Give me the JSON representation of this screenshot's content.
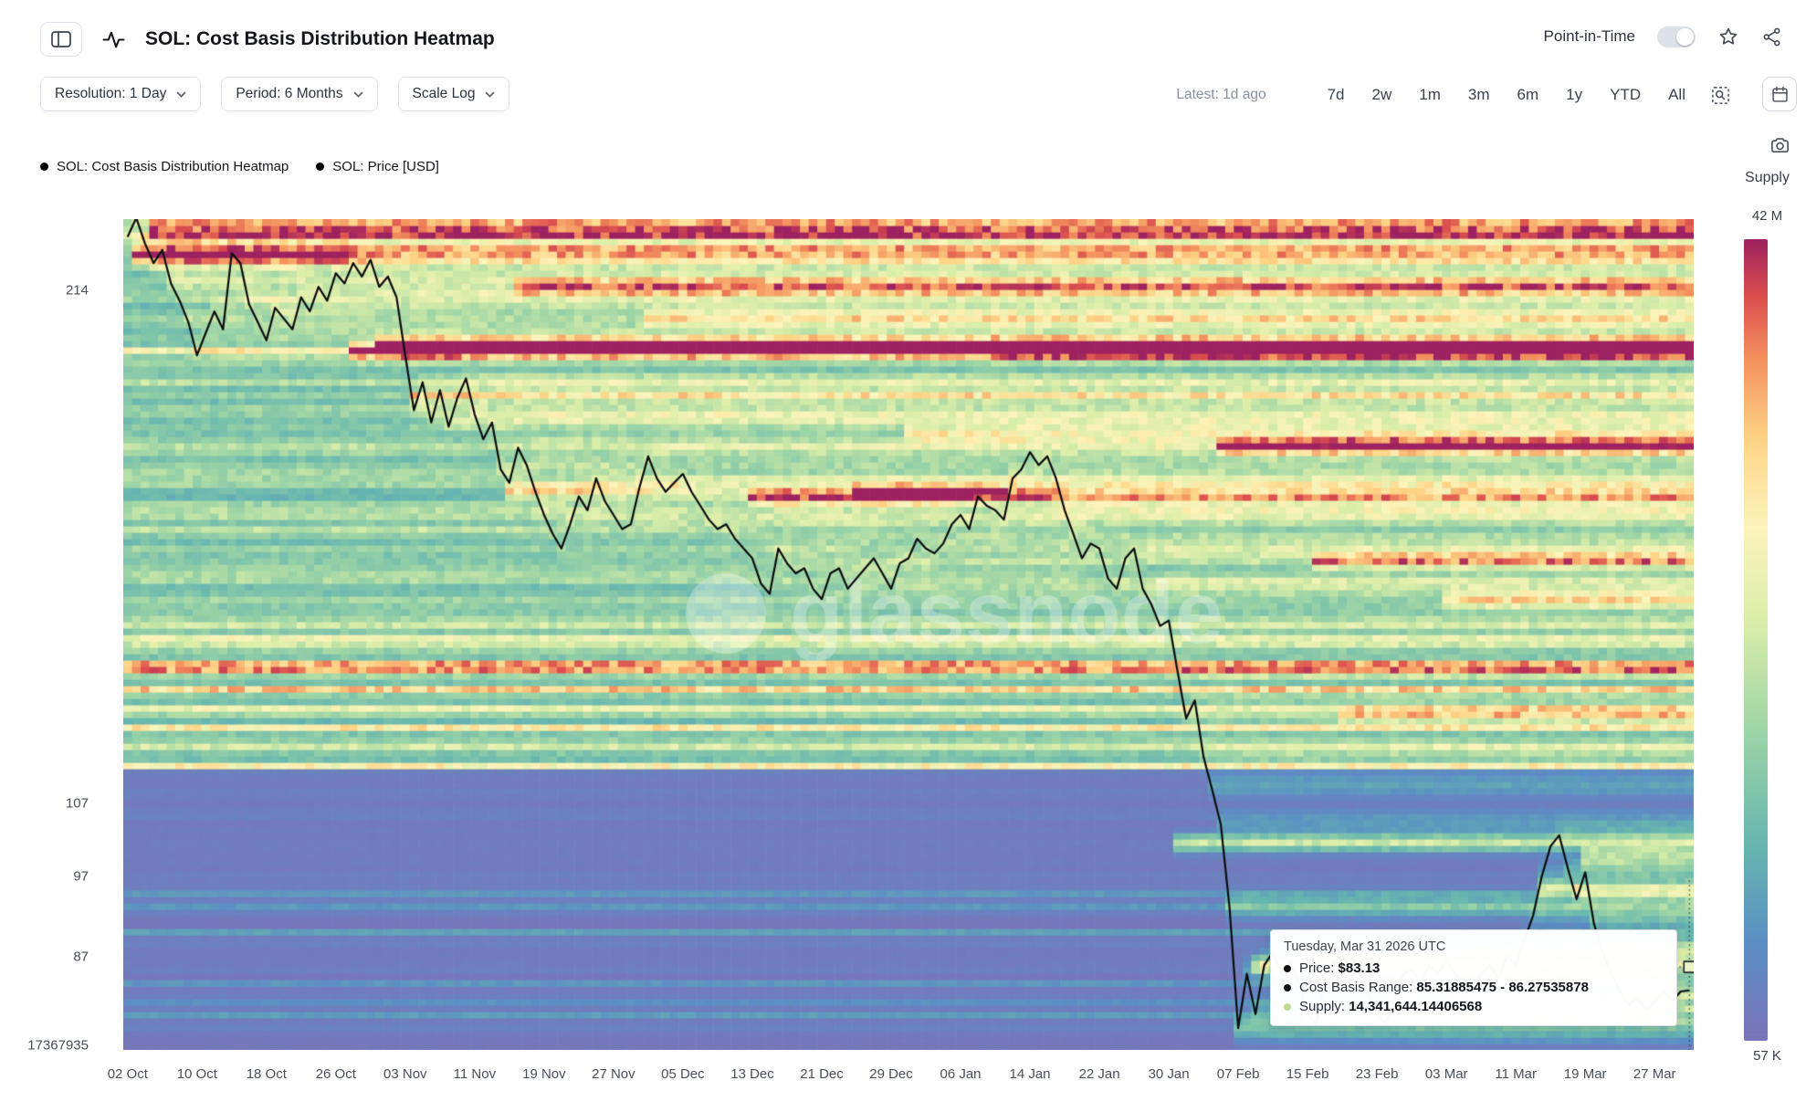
{
  "header": {
    "title": "SOL: Cost Basis Distribution Heatmap",
    "point_in_time_label": "Point-in-Time"
  },
  "toolbar": {
    "resolution": "Resolution: 1 Day",
    "period": "Period: 6 Months",
    "scale": "Scale Log",
    "latest": "Latest: 1d ago",
    "ranges": [
      "7d",
      "2w",
      "1m",
      "3m",
      "6m",
      "1y",
      "YTD",
      "All"
    ]
  },
  "legend": {
    "items": [
      {
        "label": "SOL: Cost Basis Distribution Heatmap",
        "color": "#000000"
      },
      {
        "label": "SOL: Price [USD]",
        "color": "#000000"
      }
    ]
  },
  "colorbar": {
    "title": "Supply",
    "max_label": "42 M",
    "min_label": "57 K"
  },
  "tooltip": {
    "title": "Tuesday, Mar 31 2026 UTC",
    "rows": [
      {
        "label": "Price:",
        "value": "$83.13",
        "bullet": "#111111"
      },
      {
        "label": "Cost Basis Range:",
        "value": "85.31885475 - 86.27535878",
        "bullet": "#111111"
      },
      {
        "label": "Supply:",
        "value": "14,341,644.14406568",
        "bullet": "#b9dc8e"
      }
    ]
  },
  "watermark": "glassnode",
  "chart_data": {
    "type": "heatmap",
    "title": "SOL: Cost Basis Distribution Heatmap",
    "y_scale": "log",
    "y_domain": [
      76.7,
      235.6
    ],
    "x_domain_days": 181,
    "start_date": "02 Oct",
    "end_date": "31 Mar",
    "x_ticks": [
      "02 Oct",
      "10 Oct",
      "18 Oct",
      "26 Oct",
      "03 Nov",
      "11 Nov",
      "19 Nov",
      "27 Nov",
      "05 Dec",
      "13 Dec",
      "21 Dec",
      "29 Dec",
      "06 Jan",
      "14 Jan",
      "22 Jan",
      "30 Jan",
      "07 Feb",
      "15 Feb",
      "23 Feb",
      "03 Mar",
      "11 Mar",
      "19 Mar",
      "27 Mar"
    ],
    "x_tick_step_days": 8,
    "y_ticks": [
      {
        "label": "214",
        "value": 214
      },
      {
        "label": "107",
        "value": 107
      },
      {
        "label": "97",
        "value": 97
      },
      {
        "label": "87",
        "value": 87
      },
      {
        "label": "17367935",
        "value": 77.14
      }
    ],
    "supply_scale": {
      "max": "42 M",
      "min": "57 K"
    },
    "price_series": {
      "name": "SOL: Price [USD]",
      "unit": "USD",
      "daily": [
        230,
        236,
        228,
        222,
        226,
        216,
        211,
        205,
        196,
        202,
        208,
        203,
        225,
        222,
        210,
        205,
        200,
        209,
        206,
        203,
        212,
        208,
        215,
        211,
        219,
        216,
        222,
        218,
        223,
        215,
        218,
        212,
        196,
        182,
        189,
        179,
        187,
        178,
        185,
        190,
        181,
        175,
        179,
        168,
        165,
        173,
        169,
        163,
        158,
        154,
        151,
        156,
        162,
        159,
        166,
        161,
        158,
        155,
        156,
        164,
        171,
        166,
        163,
        165,
        167,
        163,
        160,
        157,
        155,
        156,
        153,
        151,
        149,
        144,
        142,
        151,
        148,
        146,
        147,
        143,
        141,
        146,
        147,
        143,
        145,
        147,
        149,
        146,
        143,
        148,
        149,
        153,
        151,
        150,
        152,
        156,
        158,
        155,
        162,
        160,
        159,
        157,
        166,
        168,
        172,
        169,
        171,
        166,
        159,
        154,
        149,
        152,
        151,
        145,
        143,
        149,
        151,
        143,
        140,
        136,
        137,
        128,
        120,
        123,
        114,
        109,
        104,
        93,
        79,
        85,
        80.5,
        86,
        87.5,
        85,
        86.5,
        84,
        80.5,
        79.5,
        84,
        86.5,
        85,
        84,
        86,
        82.5,
        80.5,
        79.5,
        82,
        85,
        85.5,
        84,
        86,
        85,
        86.5,
        85,
        84,
        83,
        85,
        86,
        84.5,
        87,
        86,
        89,
        92,
        97,
        101,
        102.5,
        98,
        94,
        97.5,
        91,
        87.5,
        85,
        83,
        81.5,
        82.3,
        81,
        81.8,
        83,
        81.9,
        83,
        83.13
      ]
    },
    "heat_events": [
      {
        "day": 1,
        "price": 224,
        "strength": 0.7
      },
      {
        "day": 3,
        "price": 231,
        "strength": 0.45
      },
      {
        "day": 26,
        "price": 196,
        "strength": 0.6
      },
      {
        "day": 29,
        "price": 199,
        "strength": 0.4
      },
      {
        "day": 33,
        "price": 185,
        "strength": 0.3
      },
      {
        "day": 44,
        "price": 162,
        "strength": 0.5
      },
      {
        "day": 45,
        "price": 214,
        "strength": 0.4
      },
      {
        "day": 60,
        "price": 206,
        "strength": 0.3
      },
      {
        "day": 72,
        "price": 161,
        "strength": 0.5
      },
      {
        "day": 84,
        "price": 163,
        "strength": 0.4
      },
      {
        "day": 90,
        "price": 176,
        "strength": 0.3
      },
      {
        "day": 100,
        "price": 196,
        "strength": 0.35
      },
      {
        "day": 121,
        "price": 101,
        "strength": 0.45
      },
      {
        "day": 126,
        "price": 172,
        "strength": 0.5
      },
      {
        "day": 130,
        "price": 86,
        "strength": 0.35
      },
      {
        "day": 137,
        "price": 148,
        "strength": 0.42
      },
      {
        "day": 140,
        "price": 120,
        "strength": 0.3
      },
      {
        "day": 152,
        "price": 140,
        "strength": 0.35
      },
      {
        "day": 163,
        "price": 95,
        "strength": 0.4
      },
      {
        "day": 168,
        "price": 99,
        "strength": 0.3
      }
    ],
    "color_stops": [
      {
        "t": 0.0,
        "color": "#7b74b8"
      },
      {
        "t": 0.12,
        "color": "#5b8ec4"
      },
      {
        "t": 0.24,
        "color": "#66b5b0"
      },
      {
        "t": 0.38,
        "color": "#9ad3a6"
      },
      {
        "t": 0.52,
        "color": "#d9eda8"
      },
      {
        "t": 0.64,
        "color": "#fcf4bb"
      },
      {
        "t": 0.75,
        "color": "#fdd385"
      },
      {
        "t": 0.85,
        "color": "#f4915e"
      },
      {
        "t": 0.93,
        "color": "#d94d4e"
      },
      {
        "t": 1.0,
        "color": "#9e2160"
      }
    ],
    "last_point": {
      "price": 83.13,
      "cost_basis_range": [
        85.31885475,
        86.27535878
      ],
      "supply": 14341644.14406568
    }
  }
}
